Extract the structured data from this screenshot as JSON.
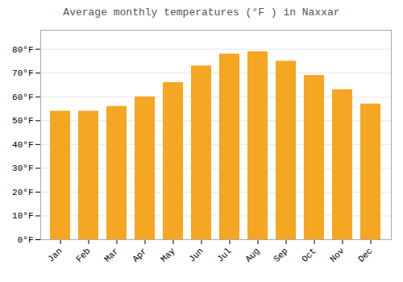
{
  "chart_data": {
    "type": "bar",
    "title": "Average monthly temperatures (°F ) in Naxxar",
    "categories": [
      "Jan",
      "Feb",
      "Mar",
      "Apr",
      "May",
      "Jun",
      "Jul",
      "Aug",
      "Sep",
      "Oct",
      "Nov",
      "Dec"
    ],
    "values": [
      54,
      54,
      56,
      60,
      66,
      73,
      78,
      79,
      75,
      69,
      63,
      57
    ],
    "color": "#F5A623",
    "ylim": [
      0,
      88
    ],
    "yticks": [
      {
        "value": 0,
        "label": "0°F"
      },
      {
        "value": 10,
        "label": "10°F"
      },
      {
        "value": 20,
        "label": "20°F"
      },
      {
        "value": 30,
        "label": "30°F"
      },
      {
        "value": 40,
        "label": "40°F"
      },
      {
        "value": 50,
        "label": "50°F"
      },
      {
        "value": 60,
        "label": "60°F"
      },
      {
        "value": 70,
        "label": "70°F"
      },
      {
        "value": 80,
        "label": "80°F"
      }
    ],
    "grid": true
  }
}
